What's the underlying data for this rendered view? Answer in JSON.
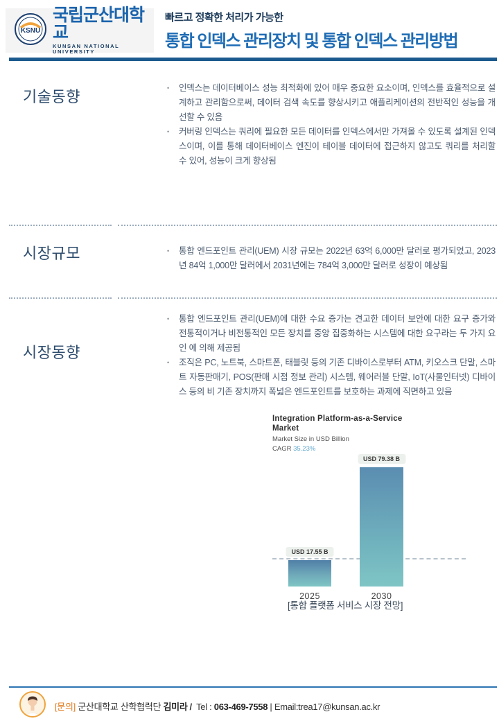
{
  "header": {
    "logo_acronym": "KSNU",
    "logo_name_ko": "국립군산대학교",
    "logo_name_en": "KUNSAN NATIONAL UNIVERSITY",
    "tagline": "빠르고 정확한 처리가 가능한",
    "title": "통합 인덱스 관리장치 및 통합 인덱스 관리방법"
  },
  "sections": [
    {
      "heading": "기술동향",
      "bullets": [
        "인덱스는 데이터베이스 성능 최적화에 있어 매우 중요한 요소이며, 인덱스를 효율적으로 설계하고 관리함으로써, 데이터 검색 속도를 향상시키고 애플리케이션의 전반적인 성능을 개선할 수 있음",
        "커버링 인덱스는 쿼리에 필요한 모든 데이터를 인덱스에서만 가져올 수 있도록 설계된 인덱스이며, 이를 통해 데이터베이스 엔진이 테이블 데이터에 접근하지 않고도 쿼리를 처리할 수 있어, 성능이 크게 향상됨"
      ]
    },
    {
      "heading": "시장규모",
      "bullets": [
        "통합 엔드포인트 관리(UEM) 시장 규모는 2022년 63억 6,000만 달러로 평가되었고, 2023년 84억 1,000만 달러에서 2031년에는 784억 3,000만 달러로 성장이 예상됨"
      ]
    },
    {
      "heading": "시장동향",
      "bullets": [
        "통합 엔드포인트 관리(UEM)에 대한 수요 증가는 견고한 데이터 보안에 대한 요구 증가와 전통적이거나 비전통적인 모든 장치를 중앙 집중화하는 시스템에 대한 요구라는 두 가지 요인 에 의해 제공됨",
        "조직은 PC, 노트북, 스마트폰, 태블릿 등의 기존 디바이스로부터 ATM, 키오스크 단말, 스마트 자동판매기, POS(판매 시점 정보 관리) 시스템, 웨어러블 단말, IoT(사물인터넷) 디바이스 등의 비 기존 장치까지 폭넓은 엔드포인트를 보호하는 과제에 직면하고 있음"
      ]
    }
  ],
  "chart_data": {
    "type": "bar",
    "title_line1": "Integration Platform-as-a-Service",
    "title_line2": "Market",
    "subtitle": "Market Size in USD Billion",
    "cagr_label": "CAGR ",
    "cagr_value": "35.23%",
    "categories": [
      "2025",
      "2030"
    ],
    "values": [
      17.55,
      79.38
    ],
    "value_labels": [
      "USD 17.55 B",
      "USD 79.38 B"
    ],
    "ylabel": "Market Size in USD Billion",
    "ylim": [
      0,
      80
    ],
    "legend": "none",
    "grid": "single dashed reference line at 17.55",
    "caption": "[통합 플랫폼 서비스 시장 전망]",
    "colors": {
      "bar_gradient_top": "#507fa7",
      "bar_gradient_bottom": "#7fc5c5",
      "label_bg": "#edf1ed",
      "cagr_accent": "#64a9cd"
    }
  },
  "footer": {
    "contact_label": "[문의]",
    "org": " 군산대학교 산학협력단 ",
    "name": "김미라",
    "separator": "/",
    "tel_label": " Tel :  ",
    "tel": "063-469-7558",
    "email": " | Email:trea17@kunsan.ac.kr"
  },
  "colors": {
    "title_blue": "#1e6cb5",
    "header_bar_navy": "#1b5a8e",
    "section_heading": "#2e4d6e",
    "body_text": "#4a5a6e",
    "footer_accent_orange": "#e07b1f",
    "footer_line_blue": "#2c74b4"
  }
}
